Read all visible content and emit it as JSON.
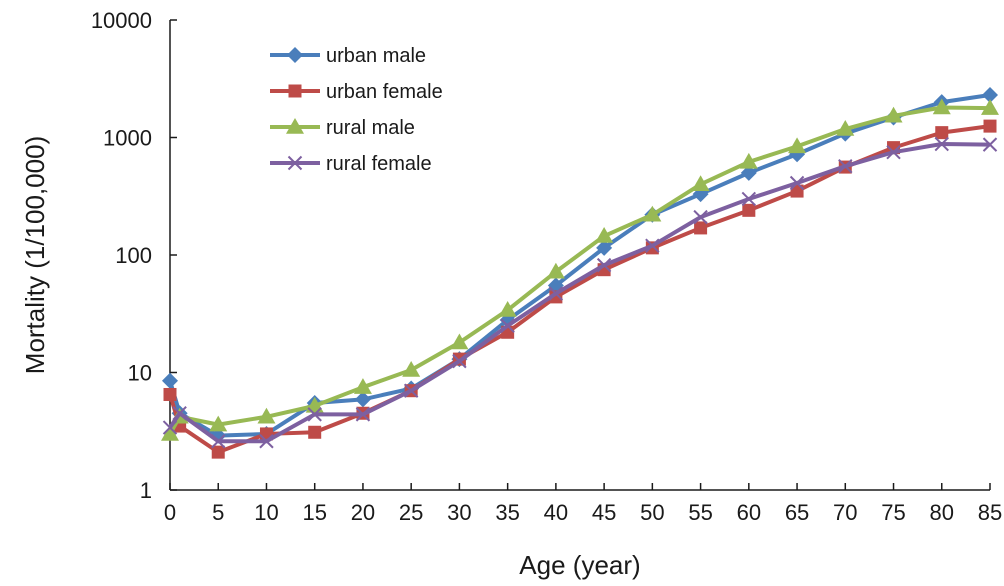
{
  "chart_data": {
    "type": "line",
    "title": "",
    "xlabel": "Age (year)",
    "ylabel": "Mortality  (1/100,000)",
    "y_scale": "log",
    "ylim": [
      1,
      10000
    ],
    "xlim": [
      0,
      85
    ],
    "grid": false,
    "legend_position": "top-left",
    "x_ticks": [
      "0",
      "5",
      "10",
      "15",
      "20",
      "25",
      "30",
      "35",
      "40",
      "45",
      "50",
      "55",
      "60",
      "65",
      "70",
      "75",
      "80",
      "85"
    ],
    "y_ticks": [
      "1",
      "10",
      "100",
      "1000",
      "10000"
    ],
    "x": [
      0,
      1,
      5,
      10,
      15,
      20,
      25,
      30,
      35,
      40,
      45,
      50,
      55,
      60,
      65,
      70,
      75,
      80,
      85
    ],
    "series": [
      {
        "name": "urban male",
        "color": "#4a7ebb",
        "marker": "diamond",
        "values": [
          8.5,
          4.5,
          2.9,
          3.0,
          5.5,
          5.9,
          7.3,
          13,
          28,
          55,
          115,
          220,
          330,
          500,
          720,
          1080,
          1480,
          2000,
          2300
        ]
      },
      {
        "name": "urban female",
        "color": "#be4b48",
        "marker": "square",
        "values": [
          6.5,
          3.5,
          2.1,
          3.0,
          3.1,
          4.5,
          7.0,
          13,
          22,
          44,
          75,
          115,
          170,
          240,
          350,
          560,
          820,
          1100,
          1250
        ]
      },
      {
        "name": "rural male",
        "color": "#98b954",
        "marker": "triangle",
        "values": [
          3.0,
          4.2,
          3.6,
          4.2,
          5.2,
          7.5,
          10.5,
          18,
          34,
          72,
          145,
          220,
          400,
          620,
          840,
          1180,
          1530,
          1800,
          1780
        ]
      },
      {
        "name": "rural female",
        "color": "#7d60a0",
        "marker": "x",
        "values": [
          3.4,
          4.5,
          2.6,
          2.6,
          4.4,
          4.4,
          7.0,
          12.5,
          25,
          47,
          82,
          120,
          210,
          300,
          410,
          570,
          750,
          880,
          870
        ]
      }
    ]
  }
}
